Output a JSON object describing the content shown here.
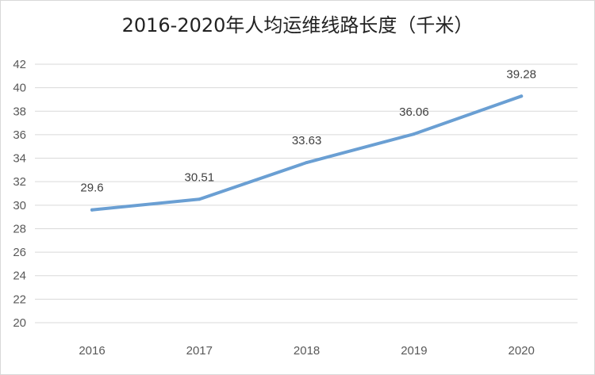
{
  "colors": {
    "line": "#6a9fd3",
    "grid": "#d9d9d9",
    "tick_text": "#595959",
    "label_text": "#404040"
  },
  "chart_data": {
    "type": "line",
    "title": "2016-2020年人均运维线路长度（千米）",
    "xlabel": "",
    "ylabel": "",
    "categories": [
      "2016",
      "2017",
      "2018",
      "2019",
      "2020"
    ],
    "series": [
      {
        "values": [
          29.6,
          30.51,
          33.63,
          36.06,
          39.28
        ]
      }
    ],
    "data_labels": [
      "29.6",
      "30.51",
      "33.63",
      "36.06",
      "39.28"
    ],
    "ylim": [
      20,
      42
    ],
    "yticks": [
      "20",
      "22",
      "24",
      "26",
      "28",
      "30",
      "32",
      "34",
      "36",
      "38",
      "40",
      "42"
    ],
    "grid": true,
    "legend": "none"
  }
}
